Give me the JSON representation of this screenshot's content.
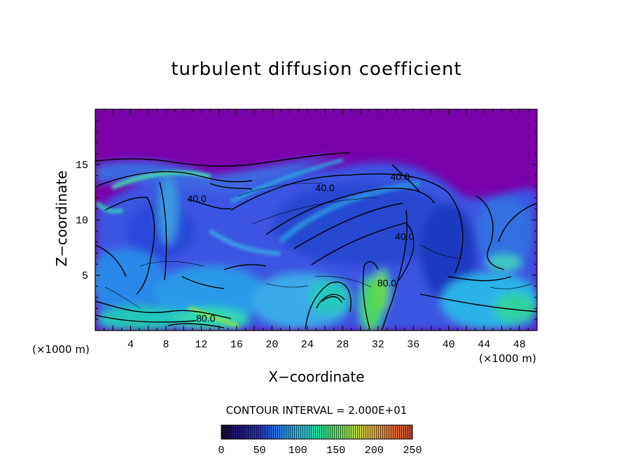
{
  "chart_data": {
    "type": "heatmap",
    "title": "turbulent diffusion coefficient",
    "xlabel": "X−coordinate",
    "ylabel": "Z−coordinate",
    "x_unit_label": "(×1000 m)",
    "xlim": [
      0,
      50
    ],
    "ylim": [
      0,
      20
    ],
    "x_ticks": [
      4,
      8,
      12,
      16,
      20,
      24,
      28,
      32,
      36,
      40,
      44,
      48
    ],
    "y_ticks": [
      5,
      10,
      15
    ],
    "contour_interval_text": "CONTOUR INTERVAL = 2.000E+01",
    "contour_labels": [
      {
        "text": "40.0",
        "x": 26.0,
        "y": 12.6
      },
      {
        "text": "40.0",
        "x": 11.5,
        "y": 11.6
      },
      {
        "text": "40.0",
        "x": 34.5,
        "y": 13.6
      },
      {
        "text": "40.0",
        "x": 35.0,
        "y": 8.2
      },
      {
        "text": "80.0",
        "x": 33.0,
        "y": 4.0
      },
      {
        "text": "80.0",
        "x": 12.5,
        "y": 0.8
      }
    ],
    "colorbar": {
      "min": 0,
      "max": 250,
      "ticks": [
        0,
        50,
        100,
        150,
        200,
        250
      ],
      "colors": [
        "#180a30",
        "#2018a8",
        "#2c5ad8",
        "#2aa2e8",
        "#22d6a8",
        "#4ae05a",
        "#9ee04a",
        "#d8c83a",
        "#e88a3a",
        "#d84a2a",
        "#a8402a"
      ]
    }
  }
}
